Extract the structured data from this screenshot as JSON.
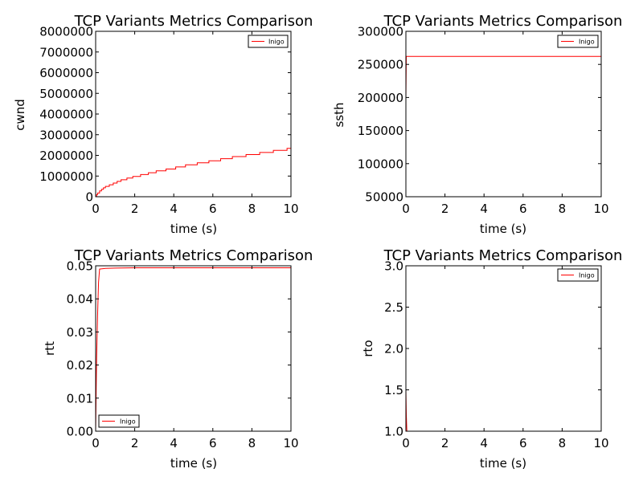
{
  "colors": {
    "series": "#ff0000",
    "axes": "#000000",
    "background": "#ffffff"
  },
  "chart_data": [
    {
      "id": "cwnd",
      "type": "line",
      "title": "TCP Variants Metrics Comparison",
      "xlabel": "time (s)",
      "ylabel": "cwnd",
      "xlim": [
        0,
        10
      ],
      "ylim": [
        0,
        8000000
      ],
      "xticks": [
        0,
        2,
        4,
        6,
        8,
        10
      ],
      "xtick_labels": [
        "0",
        "2",
        "4",
        "6",
        "8",
        "10"
      ],
      "yticks": [
        0,
        1000000,
        2000000,
        3000000,
        4000000,
        5000000,
        6000000,
        7000000,
        8000000
      ],
      "ytick_labels": [
        "0",
        "1000000",
        "2000000",
        "3000000",
        "4000000",
        "5000000",
        "6000000",
        "7000000",
        "8000000"
      ],
      "grid": false,
      "legend_position": "top-right",
      "series": [
        {
          "name": "Inigo",
          "color": "#ff0000",
          "step": true,
          "x": [
            0,
            0.05,
            0.1,
            0.2,
            0.3,
            0.4,
            0.5,
            0.7,
            0.9,
            1.1,
            1.3,
            1.6,
            1.9,
            2.3,
            2.7,
            3.1,
            3.6,
            4.1,
            4.6,
            5.2,
            5.8,
            6.4,
            7.0,
            7.7,
            8.4,
            9.1,
            9.8,
            10
          ],
          "y": [
            0,
            100000,
            180000,
            280000,
            360000,
            430000,
            500000,
            580000,
            660000,
            740000,
            820000,
            900000,
            980000,
            1070000,
            1160000,
            1250000,
            1340000,
            1440000,
            1540000,
            1640000,
            1740000,
            1840000,
            1940000,
            2040000,
            2140000,
            2240000,
            2340000,
            2500000
          ]
        }
      ]
    },
    {
      "id": "ssth",
      "type": "line",
      "title": "TCP Variants Metrics Comparison",
      "xlabel": "time (s)",
      "ylabel": "ssth",
      "xlim": [
        0,
        10
      ],
      "ylim": [
        50000,
        300000
      ],
      "xticks": [
        0,
        2,
        4,
        6,
        8,
        10
      ],
      "xtick_labels": [
        "0",
        "2",
        "4",
        "6",
        "8",
        "10"
      ],
      "yticks": [
        50000,
        100000,
        150000,
        200000,
        250000,
        300000
      ],
      "ytick_labels": [
        "50000",
        "100000",
        "150000",
        "200000",
        "250000",
        "300000"
      ],
      "grid": false,
      "legend_position": "top-right",
      "series": [
        {
          "name": "Inigo",
          "color": "#ff0000",
          "step": false,
          "x": [
            0,
            0.02,
            10
          ],
          "y": [
            200000,
            262000,
            262000
          ]
        }
      ]
    },
    {
      "id": "rtt",
      "type": "line",
      "title": "TCP Variants Metrics Comparison",
      "xlabel": "time (s)",
      "ylabel": "rtt",
      "xlim": [
        0,
        10
      ],
      "ylim": [
        0,
        0.05
      ],
      "xticks": [
        0,
        2,
        4,
        6,
        8,
        10
      ],
      "xtick_labels": [
        "0",
        "2",
        "4",
        "6",
        "8",
        "10"
      ],
      "yticks": [
        0,
        0.01,
        0.02,
        0.03,
        0.04,
        0.05
      ],
      "ytick_labels": [
        "0.00",
        "0.01",
        "0.02",
        "0.03",
        "0.04",
        "0.05"
      ],
      "grid": false,
      "legend_position": "bottom-left",
      "series": [
        {
          "name": "Inigo",
          "color": "#ff0000",
          "step": false,
          "x": [
            0,
            0.05,
            0.1,
            0.15,
            0.2,
            0.5,
            1,
            2,
            4,
            6,
            8,
            10
          ],
          "y": [
            0,
            0.022,
            0.035,
            0.045,
            0.049,
            0.0492,
            0.0493,
            0.0494,
            0.0494,
            0.0494,
            0.0494,
            0.0494
          ]
        }
      ]
    },
    {
      "id": "rto",
      "type": "line",
      "title": "TCP Variants Metrics Comparison",
      "xlabel": "time (s)",
      "ylabel": "rto",
      "xlim": [
        0,
        10
      ],
      "ylim": [
        1.0,
        3.0
      ],
      "xticks": [
        0,
        2,
        4,
        6,
        8,
        10
      ],
      "xtick_labels": [
        "0",
        "2",
        "4",
        "6",
        "8",
        "10"
      ],
      "yticks": [
        1.0,
        1.5,
        2.0,
        2.5,
        3.0
      ],
      "ytick_labels": [
        "1.0",
        "1.5",
        "2.0",
        "2.5",
        "3.0"
      ],
      "grid": false,
      "legend_position": "top-right",
      "series": [
        {
          "name": "Inigo",
          "color": "#ff0000",
          "step": false,
          "x": [
            0,
            0.02,
            0.05
          ],
          "y": [
            1.5,
            1.2,
            1.0
          ]
        }
      ]
    }
  ]
}
